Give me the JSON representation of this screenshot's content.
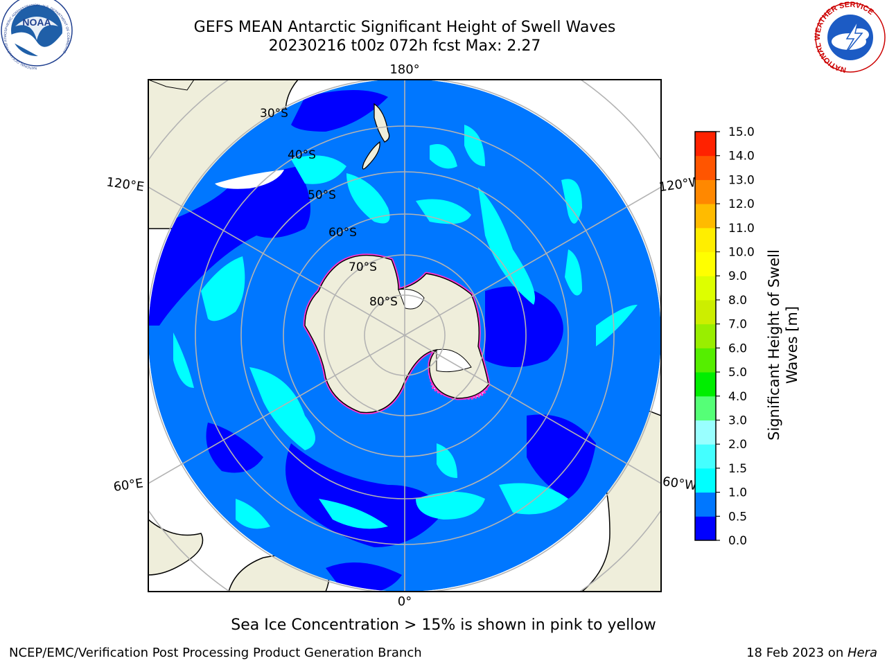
{
  "header": {
    "title_line1": "GEFS MEAN Antarctic Significant Height of Swell Waves",
    "title_line2": "20230216 t00z 072h fcst   Max: 2.27",
    "noaa_logo_text": "NOAA",
    "noaa_ring_text": "NATIONAL OCEANIC AND ATMOSPHERIC ADMINISTRATION · U.S. DEPARTMENT OF COMMERCE",
    "nws_ring_text": "NATIONAL WEATHER SERVICE"
  },
  "map": {
    "projection": "south polar stereographic",
    "lon_labels": {
      "top": "180°",
      "left_upper": "120°E",
      "right_upper": "120°W",
      "left_lower": "60°E",
      "right_lower": "60°W",
      "bottom": "0°"
    },
    "lat_labels": [
      "30°S",
      "40°S",
      "50°S",
      "60°S",
      "70°S",
      "80°S"
    ],
    "colors": {
      "land": "#efeedb",
      "ocean_low": "#0000ff",
      "ocean_mid": "#0077ff",
      "swell": "#00ffff",
      "ice": "#ffffff",
      "ice_edge": "#ff33cc",
      "grid": "#b3b3b3"
    }
  },
  "colorbar": {
    "label": "Significant Height of Swell Waves [m]",
    "ticks": [
      "15.0",
      "14.0",
      "13.0",
      "12.0",
      "11.0",
      "10.0",
      "9.0",
      "8.0",
      "7.0",
      "6.0",
      "5.0",
      "4.0",
      "3.0",
      "2.0",
      "1.5",
      "1.0",
      "0.5",
      "0.0"
    ],
    "colors_bottom_to_top": [
      "#0000ff",
      "#0077ff",
      "#00ffff",
      "#44ffff",
      "#99ffff",
      "#55ff77",
      "#00ee00",
      "#55ee00",
      "#99ee00",
      "#ccee00",
      "#ddff00",
      "#ffff00",
      "#ffee00",
      "#ffbb00",
      "#ff8800",
      "#ff5500",
      "#ff2200"
    ]
  },
  "subtitle": "Sea Ice Concentration > 15% is shown in pink to yellow",
  "footer": {
    "left": "NCEP/EMC/Verification Post Processing Product Generation Branch",
    "right_prefix": "18 Feb 2023 on ",
    "right_host": "Hera"
  }
}
